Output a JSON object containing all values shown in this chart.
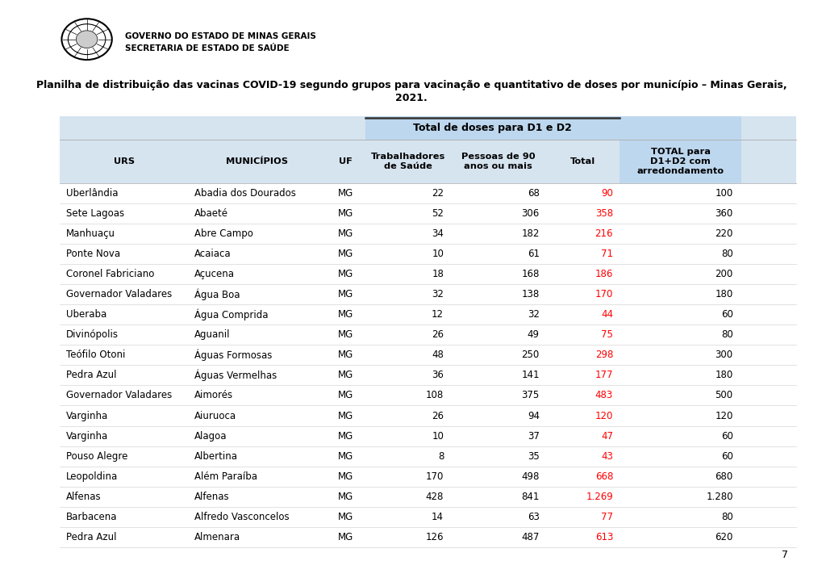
{
  "title_line1": "Planilha de distribuição das vacinas COVID-19 segundo grupos para vacinação e quantitativo de doses por município – Minas Gerais,",
  "title_line2": "2021.",
  "header_gov": "GOVERNO DO ESTADO DE MINAS GERAIS",
  "header_sec": "SECRETARIA DE ESTADO DE SAÚDE",
  "col_header_span": "Total de doses para D1 e D2",
  "col_headers": [
    "URS",
    "MUNICÍPIOS",
    "UF",
    "Trabalhadores\nde Saúde",
    "Pessoas de 90\nanos ou mais",
    "Total",
    "TOTAL para\nD1+D2 com\narredondamento"
  ],
  "rows": [
    [
      "Uberlândia",
      "Abadia dos Dourados",
      "MG",
      "22",
      "68",
      "90",
      "100"
    ],
    [
      "Sete Lagoas",
      "Abaeté",
      "MG",
      "52",
      "306",
      "358",
      "360"
    ],
    [
      "Manhuaçu",
      "Abre Campo",
      "MG",
      "34",
      "182",
      "216",
      "220"
    ],
    [
      "Ponte Nova",
      "Acaiaca",
      "MG",
      "10",
      "61",
      "71",
      "80"
    ],
    [
      "Coronel Fabriciano",
      "Açucena",
      "MG",
      "18",
      "168",
      "186",
      "200"
    ],
    [
      "Governador Valadares",
      "Água Boa",
      "MG",
      "32",
      "138",
      "170",
      "180"
    ],
    [
      "Uberaba",
      "Água Comprida",
      "MG",
      "12",
      "32",
      "44",
      "60"
    ],
    [
      "Divinópolis",
      "Aguanil",
      "MG",
      "26",
      "49",
      "75",
      "80"
    ],
    [
      "Teófilo Otoni",
      "Águas Formosas",
      "MG",
      "48",
      "250",
      "298",
      "300"
    ],
    [
      "Pedra Azul",
      "Águas Vermelhas",
      "MG",
      "36",
      "141",
      "177",
      "180"
    ],
    [
      "Governador Valadares",
      "Aimorés",
      "MG",
      "108",
      "375",
      "483",
      "500"
    ],
    [
      "Varginha",
      "Aiuruoca",
      "MG",
      "26",
      "94",
      "120",
      "120"
    ],
    [
      "Varginha",
      "Alagoa",
      "MG",
      "10",
      "37",
      "47",
      "60"
    ],
    [
      "Pouso Alegre",
      "Albertina",
      "MG",
      "8",
      "35",
      "43",
      "60"
    ],
    [
      "Leopoldina",
      "Além Paraíba",
      "MG",
      "170",
      "498",
      "668",
      "680"
    ],
    [
      "Alfenas",
      "Alfenas",
      "MG",
      "428",
      "841",
      "1.269",
      "1.280"
    ],
    [
      "Barbacena",
      "Alfredo Vasconcelos",
      "MG",
      "14",
      "63",
      "77",
      "80"
    ],
    [
      "Pedra Azul",
      "Almenara",
      "MG",
      "126",
      "487",
      "613",
      "620"
    ]
  ],
  "total_col_index": 5,
  "total_color": "#FF0000",
  "normal_color": "#000000",
  "header_bg_light": "#D6E4F0",
  "header_bg_dark": "#BDD7EE",
  "span_header_bg": "#BDD7EE",
  "page_number": "7",
  "background_color": "#FFFFFF"
}
